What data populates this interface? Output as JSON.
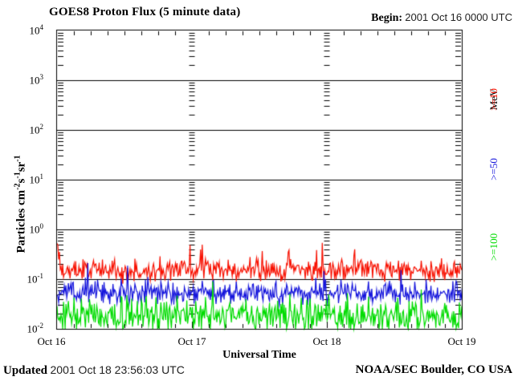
{
  "header": {
    "title": "GOES8 Proton Flux (5 minute data)",
    "begin_label": "Begin:",
    "begin_value": "2001 Oct 16 0000 UTC"
  },
  "footer": {
    "updated_label": "Updated",
    "updated_value": "2001 Oct 18 23:56:03 UTC",
    "credit": "NOAA/SEC Boulder, CO USA"
  },
  "chart_data": {
    "type": "line",
    "title": "GOES8 Proton Flux (5 minute data)",
    "xlabel": "Universal Time",
    "ylabel_text": "Particles cm⁻²s⁻¹sr⁻¹",
    "ylabel_parts": [
      {
        "t": "Particles cm"
      },
      {
        "s": "-2"
      },
      {
        "t": "s"
      },
      {
        "s": "-1"
      },
      {
        "t": "sr"
      },
      {
        "s": "-1"
      }
    ],
    "right_axis_unit": "MeV",
    "x_ticks": [
      "Oct 16",
      "Oct 17",
      "Oct 18",
      "Oct 19"
    ],
    "y_ticks": [
      {
        "b": "10",
        "e": "4"
      },
      {
        "b": "10",
        "e": "3"
      },
      {
        "b": "10",
        "e": "2"
      },
      {
        "b": "10",
        "e": "1"
      },
      {
        "b": "10",
        "e": "0"
      },
      {
        "b": "10",
        "e": "-1"
      },
      {
        "b": "10",
        "e": "-2"
      }
    ],
    "y_log_min": -2,
    "y_log_max": 4,
    "x_days": 3,
    "points_per_day": 288,
    "hour_ticks_per_day": 8,
    "minor_tick_log_values": [
      2,
      3,
      4,
      5,
      6,
      7,
      8,
      9
    ],
    "grid": "solid horizontal line at each decade; minor log-tick dash columns at day boundaries and left/right axes; 3-hour ticks on top/bottom axes",
    "legend_position": "right, rotated 90deg",
    "series": [
      {
        "label": ">=10",
        "name": ">=10 MeV protons",
        "color": "#f81000",
        "approx_median_flux": 0.15,
        "approx_min_flux": 0.06,
        "approx_max_flux": 0.65,
        "log_base": -0.82,
        "log_sigma": 0.11,
        "spike_prob": 0.05,
        "spike_amp": 0.45,
        "start_boost": 0.55,
        "seed": 101
      },
      {
        "label": ">=50",
        "name": ">=50 MeV protons",
        "color": "#1414dc",
        "approx_median_flux": 0.055,
        "approx_min_flux": 0.02,
        "approx_max_flux": 0.18,
        "log_base": -1.27,
        "log_sigma": 0.11,
        "spike_prob": 0.04,
        "spike_amp": 0.35,
        "start_boost": 0,
        "seed": 202
      },
      {
        "label": ">=100",
        "name": ">=100 MeV protons",
        "color": "#00dc00",
        "approx_median_flux": 0.022,
        "approx_min_flux": 0.01,
        "approx_max_flux": 0.13,
        "log_base": -1.73,
        "log_sigma": 0.16,
        "spike_prob": 0.03,
        "spike_amp": 0.5,
        "start_boost": 0,
        "seed": 303
      }
    ]
  }
}
